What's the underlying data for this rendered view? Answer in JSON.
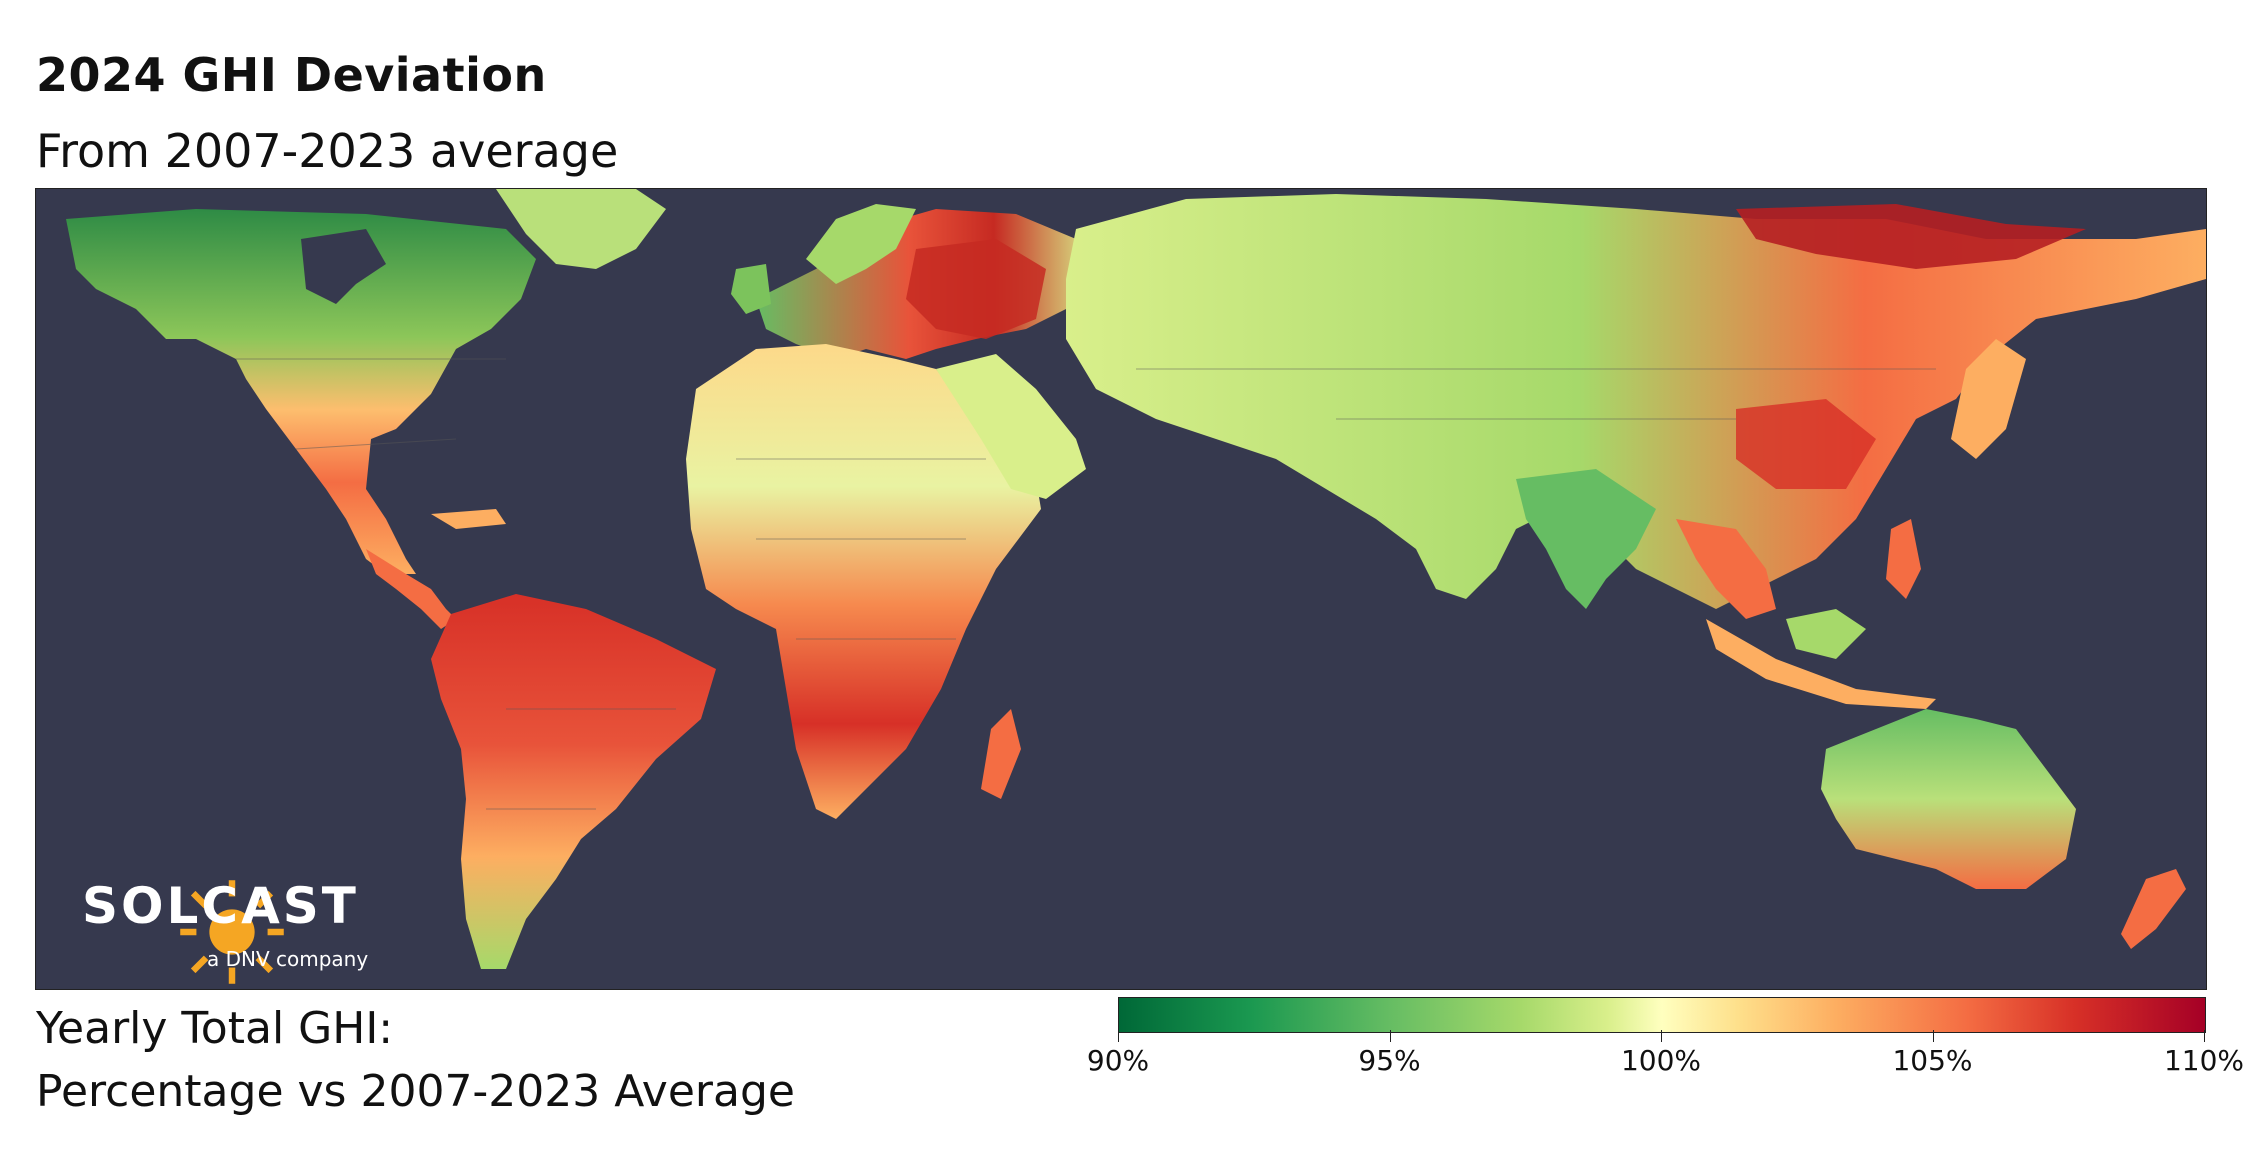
{
  "title": "2024 GHI Deviation",
  "subtitle": "From 2007-2023 average",
  "logo": {
    "name": "SOLCAST",
    "tagline": "a DNV company"
  },
  "legend": {
    "title_line1": "Yearly Total GHI:",
    "title_line2": "Percentage vs 2007-2023 Average",
    "ticks": [
      "90%",
      "95%",
      "100%",
      "105%",
      "110%"
    ],
    "range": [
      90,
      110
    ],
    "colormap": [
      "#006837",
      "#1a9850",
      "#66bd63",
      "#a6d96a",
      "#d9ef8b",
      "#ffffbf",
      "#fee08b",
      "#fdae61",
      "#f46d43",
      "#d73027",
      "#a50026"
    ]
  },
  "colors": {
    "ocean": "#36394e",
    "background": "#ffffff"
  }
}
